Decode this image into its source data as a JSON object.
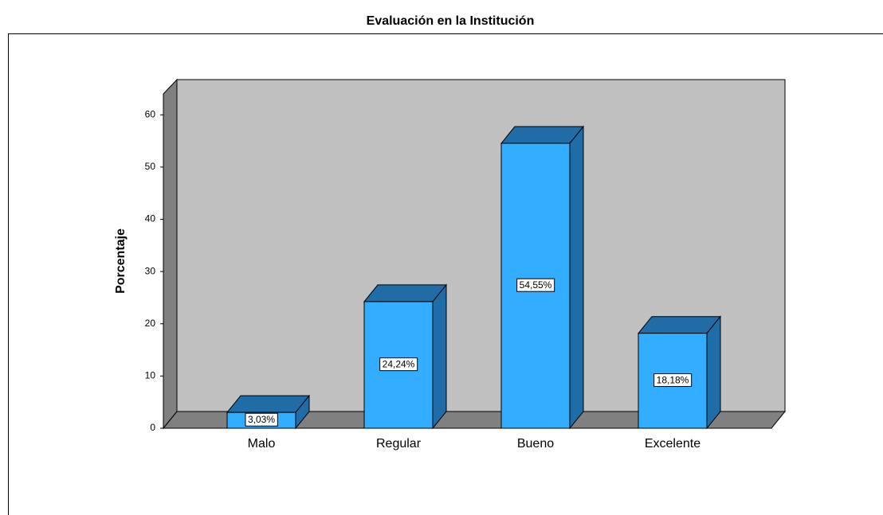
{
  "chart_data": {
    "type": "bar3d",
    "title": "Evaluación en la Institución",
    "y_label": "Porcentaje",
    "categories": [
      "Malo",
      "Regular",
      "Bueno",
      "Excelente"
    ],
    "values": [
      3.03,
      24.24,
      54.55,
      18.18
    ],
    "value_labels": [
      "3,03%",
      "24,24%",
      "54,55%",
      "18,18%"
    ],
    "color": "#33adff",
    "ylim": [
      0,
      64
    ],
    "yticks": [
      0,
      10,
      20,
      30,
      40,
      50,
      60
    ]
  }
}
